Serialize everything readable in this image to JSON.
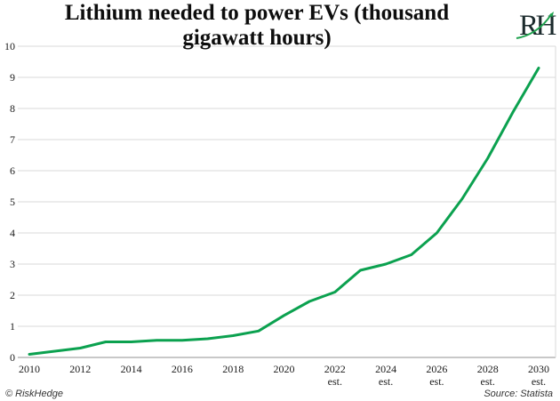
{
  "title_lines": [
    "Lithium needed to power EVs (thousand",
    "gigawatt hours)"
  ],
  "logo": {
    "text": "RH",
    "accent_color": "#1fa24e"
  },
  "footer": {
    "copyright": "© RiskHedge",
    "source": "Source: Statista"
  },
  "chart_data": {
    "type": "line",
    "title": "Lithium needed to power EVs (thousand gigawatt hours)",
    "x": [
      2010,
      2011,
      2012,
      2013,
      2014,
      2015,
      2016,
      2017,
      2018,
      2019,
      2020,
      2021,
      2022,
      2023,
      2024,
      2025,
      2026,
      2027,
      2028,
      2029,
      2030
    ],
    "values": [
      0.1,
      0.2,
      0.3,
      0.5,
      0.5,
      0.55,
      0.55,
      0.6,
      0.7,
      0.85,
      1.35,
      1.8,
      2.1,
      2.8,
      3.0,
      3.3,
      4.0,
      5.1,
      6.4,
      7.9,
      9.3
    ],
    "series_color": "#0ba14f",
    "ylim": [
      0,
      10
    ],
    "yticks": [
      0,
      1,
      2,
      3,
      4,
      5,
      6,
      7,
      8,
      9,
      10
    ],
    "xticks": [
      {
        "year": 2010,
        "label": "2010",
        "sub": ""
      },
      {
        "year": 2012,
        "label": "2012",
        "sub": ""
      },
      {
        "year": 2014,
        "label": "2014",
        "sub": ""
      },
      {
        "year": 2016,
        "label": "2016",
        "sub": ""
      },
      {
        "year": 2018,
        "label": "2018",
        "sub": ""
      },
      {
        "year": 2020,
        "label": "2020",
        "sub": ""
      },
      {
        "year": 2022,
        "label": "2022",
        "sub": "est."
      },
      {
        "year": 2024,
        "label": "2024",
        "sub": "est."
      },
      {
        "year": 2026,
        "label": "2026",
        "sub": "est."
      },
      {
        "year": 2028,
        "label": "2028",
        "sub": "est."
      },
      {
        "year": 2030,
        "label": "2030",
        "sub": "est."
      }
    ],
    "grid": true,
    "gridline_color": "#d9d9d9",
    "axis_color": "#a6a6a6"
  }
}
